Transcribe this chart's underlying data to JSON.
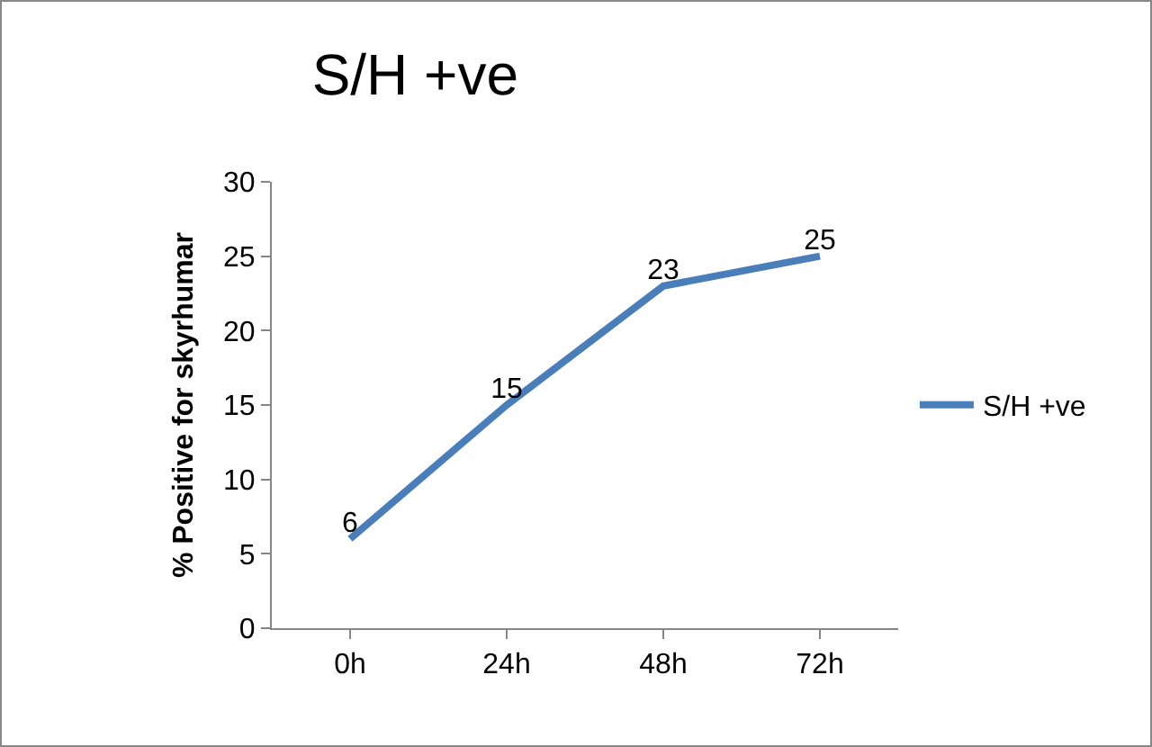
{
  "chart_data": {
    "type": "line",
    "title": "S/H +ve",
    "ylabel": "% Positive for skyrhumar",
    "categories": [
      "0h",
      "24h",
      "48h",
      "72h"
    ],
    "series": [
      {
        "name": "S/H +ve",
        "color": "#4a7ebb",
        "values": [
          6,
          15,
          23,
          25
        ]
      }
    ],
    "ylim": [
      0,
      30
    ],
    "yticks": [
      0,
      5,
      10,
      15,
      20,
      25,
      30
    ],
    "data_labels": true,
    "legend": "right",
    "grid": false,
    "marker": "none",
    "line_style": "solid"
  }
}
